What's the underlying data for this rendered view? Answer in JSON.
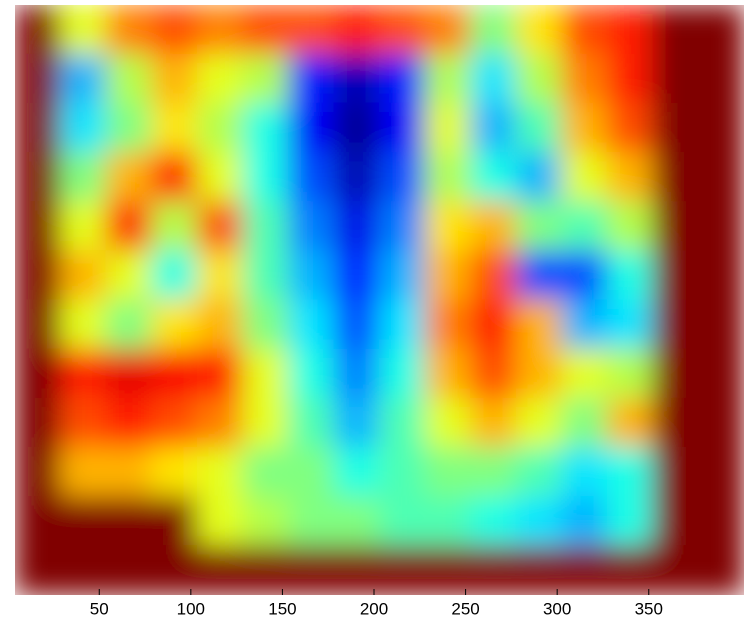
{
  "chart_data": {
    "type": "heatmap",
    "colormap": "jet",
    "clim": [
      0,
      1
    ],
    "xlim": [
      4,
      402
    ],
    "xticks": [
      50,
      100,
      150,
      200,
      250,
      300,
      350
    ],
    "z": [
      [
        1,
        0.6,
        0.75,
        0.8,
        0.75,
        0.8,
        0.8,
        0.85,
        0.8,
        0.75,
        0.5,
        0.65,
        0.8,
        0.85,
        1,
        1
      ],
      [
        1,
        0.3,
        0.55,
        0.7,
        0.6,
        0.55,
        0.15,
        0.05,
        0.15,
        0.55,
        0.35,
        0.55,
        0.75,
        0.85,
        1,
        1
      ],
      [
        1,
        0.35,
        0.5,
        0.65,
        0.55,
        0.4,
        0.12,
        0.02,
        0.12,
        0.6,
        0.3,
        0.45,
        0.7,
        0.8,
        1,
        1
      ],
      [
        1,
        0.5,
        0.7,
        0.85,
        0.6,
        0.4,
        0.2,
        0.05,
        0.2,
        0.55,
        0.4,
        0.3,
        0.6,
        0.7,
        1,
        1
      ],
      [
        1,
        0.6,
        0.85,
        0.55,
        0.8,
        0.45,
        0.25,
        0.1,
        0.25,
        0.65,
        0.7,
        0.5,
        0.45,
        0.55,
        1,
        1
      ],
      [
        1,
        0.7,
        0.6,
        0.4,
        0.65,
        0.45,
        0.3,
        0.15,
        0.3,
        0.7,
        0.8,
        0.2,
        0.2,
        0.4,
        1,
        1
      ],
      [
        1,
        0.6,
        0.5,
        0.65,
        0.7,
        0.5,
        0.35,
        0.2,
        0.35,
        0.75,
        0.85,
        0.7,
        0.3,
        0.35,
        1,
        1
      ],
      [
        1,
        0.85,
        0.9,
        0.88,
        0.85,
        0.6,
        0.4,
        0.25,
        0.4,
        0.7,
        0.8,
        0.7,
        0.6,
        0.55,
        1,
        1
      ],
      [
        1,
        0.8,
        0.85,
        0.8,
        0.75,
        0.6,
        0.45,
        0.3,
        0.45,
        0.6,
        0.7,
        0.6,
        0.5,
        0.7,
        1,
        1
      ],
      [
        1,
        0.7,
        0.7,
        0.65,
        0.6,
        0.5,
        0.5,
        0.4,
        0.45,
        0.5,
        0.5,
        0.45,
        0.35,
        0.4,
        1,
        1
      ],
      [
        1,
        1,
        1,
        1,
        0.6,
        0.55,
        0.5,
        0.5,
        0.45,
        0.45,
        0.4,
        0.35,
        0.3,
        0.4,
        1,
        1
      ],
      [
        1,
        1,
        1,
        1,
        1,
        1,
        1,
        1,
        1,
        1,
        1,
        1,
        1,
        1,
        1,
        1
      ]
    ]
  }
}
